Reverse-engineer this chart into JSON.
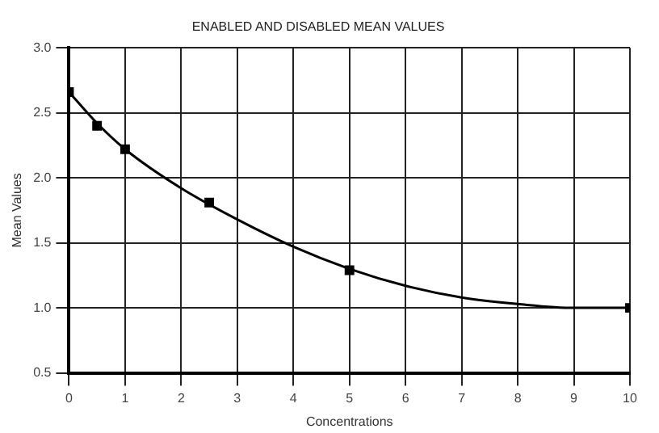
{
  "chart_data": {
    "type": "scatter",
    "title": "ENABLED AND DISABLED MEAN VALUES",
    "xlabel": "Concentrations",
    "ylabel": "Mean Values",
    "series": [
      {
        "color": "#000000",
        "marker": "square",
        "x": [
          0,
          0.5,
          1,
          2.5,
          5,
          10
        ],
        "values": [
          2.66,
          2.4,
          2.22,
          1.81,
          1.29,
          1.0
        ]
      },
      {
        "type": "line",
        "color": "#000000",
        "marker": "none",
        "x": [
          0,
          0.5,
          1,
          2,
          3,
          4,
          5,
          6,
          7,
          8,
          9,
          10
        ],
        "values": [
          2.66,
          2.42,
          2.22,
          1.92,
          1.68,
          1.47,
          1.3,
          1.17,
          1.08,
          1.03,
          1.0,
          1.0
        ]
      }
    ],
    "xlim": [
      0,
      10
    ],
    "xticks": [
      0,
      1,
      2,
      3,
      4,
      5,
      6,
      7,
      8,
      9,
      10
    ],
    "ylim": [
      0.5,
      3
    ],
    "yticks": [
      {
        "value": 0.5,
        "label": "0.5"
      },
      {
        "value": 1,
        "label": "1.0"
      },
      {
        "value": 1.5,
        "label": "1.5"
      },
      {
        "value": 2,
        "label": "2.0"
      },
      {
        "value": 2.5,
        "label": "2.5"
      },
      {
        "value": 3,
        "label": "3.0"
      }
    ],
    "grid": true,
    "legend": false
  }
}
